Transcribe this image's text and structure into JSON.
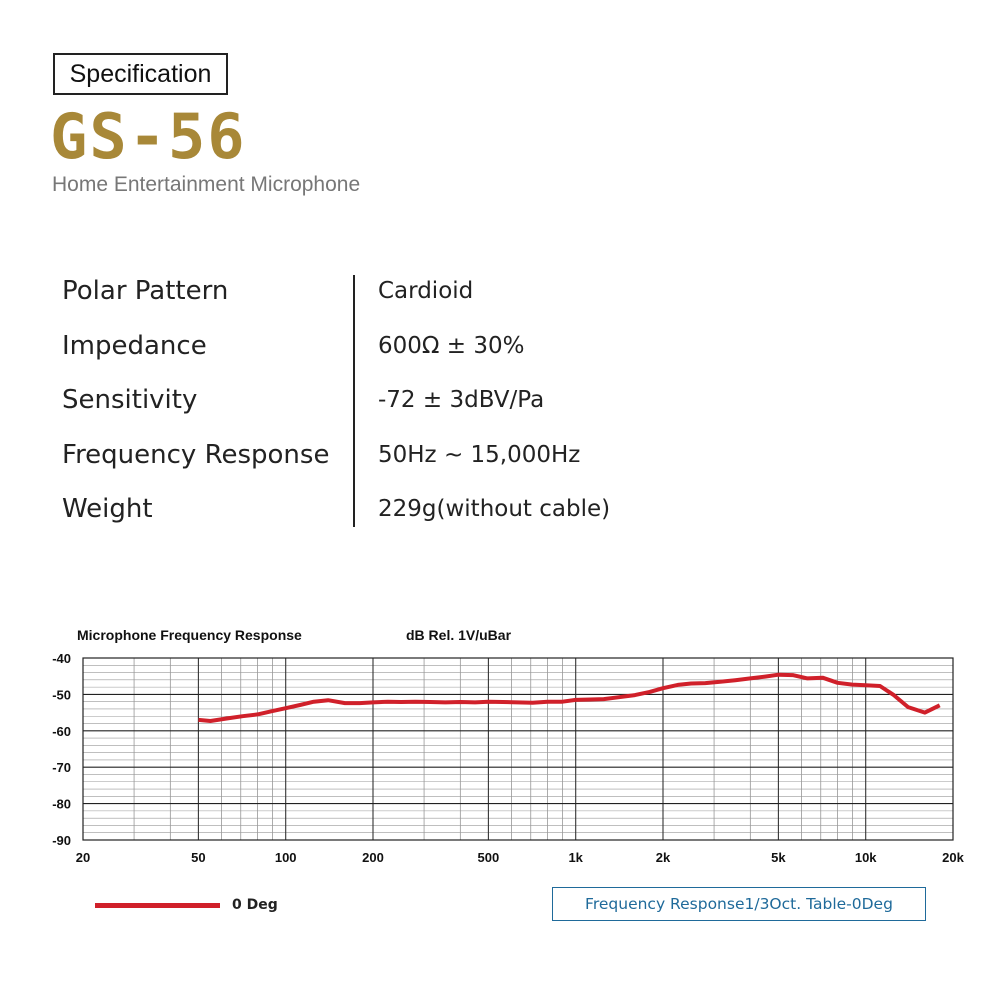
{
  "header": {
    "section_label": "Specification",
    "model": "GS-56",
    "subtitle": "Home Entertainment Microphone"
  },
  "specs": [
    {
      "name": "Polar Pattern",
      "value": "Cardioid"
    },
    {
      "name": "Impedance",
      "value": "600Ω ± 30%"
    },
    {
      "name": "Sensitivity",
      "value": "-72 ± 3dBV/Pa"
    },
    {
      "name": "Frequency Response",
      "value": "50Hz ~ 15,000Hz"
    },
    {
      "name": "Weight",
      "value": "229g(without cable)"
    }
  ],
  "badge": "Frequency Response1/3Oct. Table-0Deg",
  "colors": {
    "accent": "#a88838",
    "series": "#d0202a",
    "badge": "#1f6a9a"
  },
  "chart_data": {
    "type": "line",
    "title": "Microphone Frequency Response",
    "ylabel": "dB Rel. 1V/uBar",
    "xscale": "log",
    "xlim": [
      20,
      20000
    ],
    "ylim": [
      -90,
      -40
    ],
    "grid": true,
    "legend": "bottom-left",
    "x_ticks": [
      {
        "value": 20,
        "label": "20"
      },
      {
        "value": 50,
        "label": "50"
      },
      {
        "value": 100,
        "label": "100"
      },
      {
        "value": 200,
        "label": "200"
      },
      {
        "value": 500,
        "label": "500"
      },
      {
        "value": 1000,
        "label": "1k"
      },
      {
        "value": 2000,
        "label": "2k"
      },
      {
        "value": 5000,
        "label": "5k"
      },
      {
        "value": 10000,
        "label": "10k"
      },
      {
        "value": 20000,
        "label": "20k"
      }
    ],
    "y_ticks": [
      {
        "value": -40,
        "label": "-40"
      },
      {
        "value": -50,
        "label": "-50"
      },
      {
        "value": -60,
        "label": "-60"
      },
      {
        "value": -70,
        "label": "-70"
      },
      {
        "value": -80,
        "label": "-80"
      },
      {
        "value": -90,
        "label": "-90"
      }
    ],
    "series": [
      {
        "name": "0 Deg",
        "color": "#d0202a",
        "x": [
          50,
          55,
          63,
          71,
          80,
          90,
          100,
          112,
          125,
          140,
          160,
          180,
          200,
          225,
          250,
          280,
          315,
          355,
          400,
          450,
          500,
          560,
          630,
          710,
          800,
          900,
          1000,
          1120,
          1250,
          1400,
          1600,
          1800,
          2000,
          2250,
          2500,
          2800,
          3150,
          3550,
          4000,
          4500,
          5000,
          5600,
          6300,
          7100,
          8000,
          9000,
          10000,
          11200,
          12500,
          14000,
          16000,
          18000
        ],
        "y": [
          -57,
          -57.3,
          -56.6,
          -56,
          -55.5,
          -54.6,
          -53.8,
          -52.9,
          -52.0,
          -51.6,
          -52.4,
          -52.4,
          -52.2,
          -52.0,
          -52.1,
          -52.0,
          -52.1,
          -52.2,
          -52.1,
          -52.2,
          -52.0,
          -52.1,
          -52.2,
          -52.3,
          -52.0,
          -52.0,
          -51.5,
          -51.4,
          -51.3,
          -50.8,
          -50.2,
          -49.3,
          -48.3,
          -47.4,
          -47.0,
          -46.9,
          -46.5,
          -46.1,
          -45.6,
          -45.1,
          -44.6,
          -44.7,
          -45.6,
          -45.4,
          -46.8,
          -47.3,
          -47.5,
          -47.7,
          -50.2,
          -53.5,
          -55.0,
          -53.0
        ]
      }
    ]
  }
}
